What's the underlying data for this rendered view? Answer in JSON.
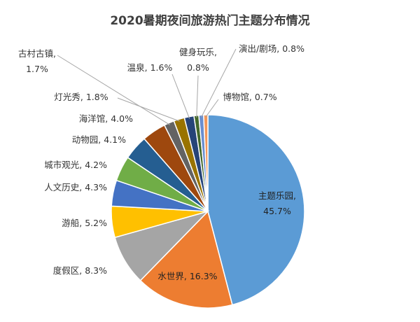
{
  "chart_data": {
    "type": "pie",
    "title": "2020暑期夜间旅游热门主题分布情况",
    "slices": [
      {
        "label": "主题乐园",
        "value": 45.7,
        "text": "45.7%",
        "color": "#5B9BD5"
      },
      {
        "label": "水世界",
        "value": 16.3,
        "text": "16.3%",
        "color": "#ED7D31"
      },
      {
        "label": "度假区",
        "value": 8.3,
        "text": "8.3%",
        "color": "#A5A5A5"
      },
      {
        "label": "游船",
        "value": 5.2,
        "text": "5.2%",
        "color": "#FFC000"
      },
      {
        "label": "人文历史",
        "value": 4.3,
        "text": "4.3%",
        "color": "#4472C4"
      },
      {
        "label": "城市观光",
        "value": 4.2,
        "text": "4.2%",
        "color": "#70AD47"
      },
      {
        "label": "动物园",
        "value": 4.1,
        "text": "4.1%",
        "color": "#255E91"
      },
      {
        "label": "海洋馆",
        "value": 4.0,
        "text": "4.0%",
        "color": "#9E480E"
      },
      {
        "label": "古村古镇",
        "value": 1.7,
        "text": "1.7%",
        "color": "#636363"
      },
      {
        "label": "灯光秀",
        "value": 1.8,
        "text": "1.8%",
        "color": "#997300"
      },
      {
        "label": "温泉",
        "value": 1.6,
        "text": "1.6%",
        "color": "#264478"
      },
      {
        "label": "健身玩乐",
        "value": 0.8,
        "text": "0.8%",
        "color": "#43682B"
      },
      {
        "label": "演出/剧场",
        "value": 0.8,
        "text": "0.8%",
        "color": "#698ED0"
      },
      {
        "label": "博物馆",
        "value": 0.7,
        "text": "0.7%",
        "color": "#F1975A"
      }
    ]
  }
}
